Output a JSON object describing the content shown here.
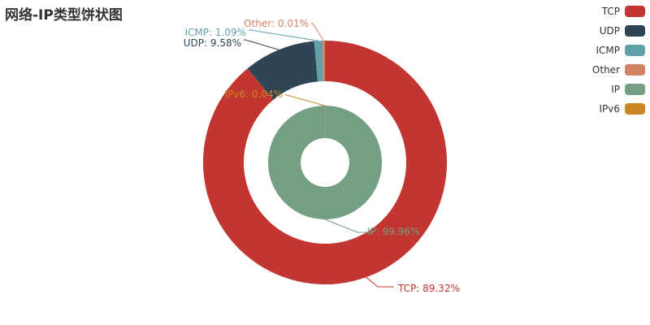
{
  "title": "网络-IP类型饼状图",
  "chart_data": {
    "type": "pie",
    "title": "网络-IP类型饼状图",
    "legend_position": "top-right",
    "rings": [
      {
        "name": "outer",
        "slices": [
          {
            "name": "TCP",
            "value": 89.32,
            "label": "TCP: 89.32%",
            "color": "#c23531"
          },
          {
            "name": "UDP",
            "value": 9.58,
            "label": "UDP: 9.58%",
            "color": "#2f4554"
          },
          {
            "name": "ICMP",
            "value": 1.09,
            "label": "ICMP: 1.09%",
            "color": "#61a0a8"
          },
          {
            "name": "Other",
            "value": 0.01,
            "label": "Other: 0.01%",
            "color": "#d48265"
          }
        ]
      },
      {
        "name": "inner",
        "slices": [
          {
            "name": "IP",
            "value": 99.96,
            "label": "IP: 99.96%",
            "color": "#749f83"
          },
          {
            "name": "IPv6",
            "value": 0.04,
            "label": "IPv6: 0.04%",
            "color": "#ca8622"
          }
        ]
      }
    ],
    "legend": [
      {
        "name": "TCP",
        "color": "#c23531"
      },
      {
        "name": "UDP",
        "color": "#2f4554"
      },
      {
        "name": "ICMP",
        "color": "#61a0a8"
      },
      {
        "name": "Other",
        "color": "#d48265"
      },
      {
        "name": "IP",
        "color": "#749f83"
      },
      {
        "name": "IPv6",
        "color": "#ca8622"
      }
    ]
  }
}
